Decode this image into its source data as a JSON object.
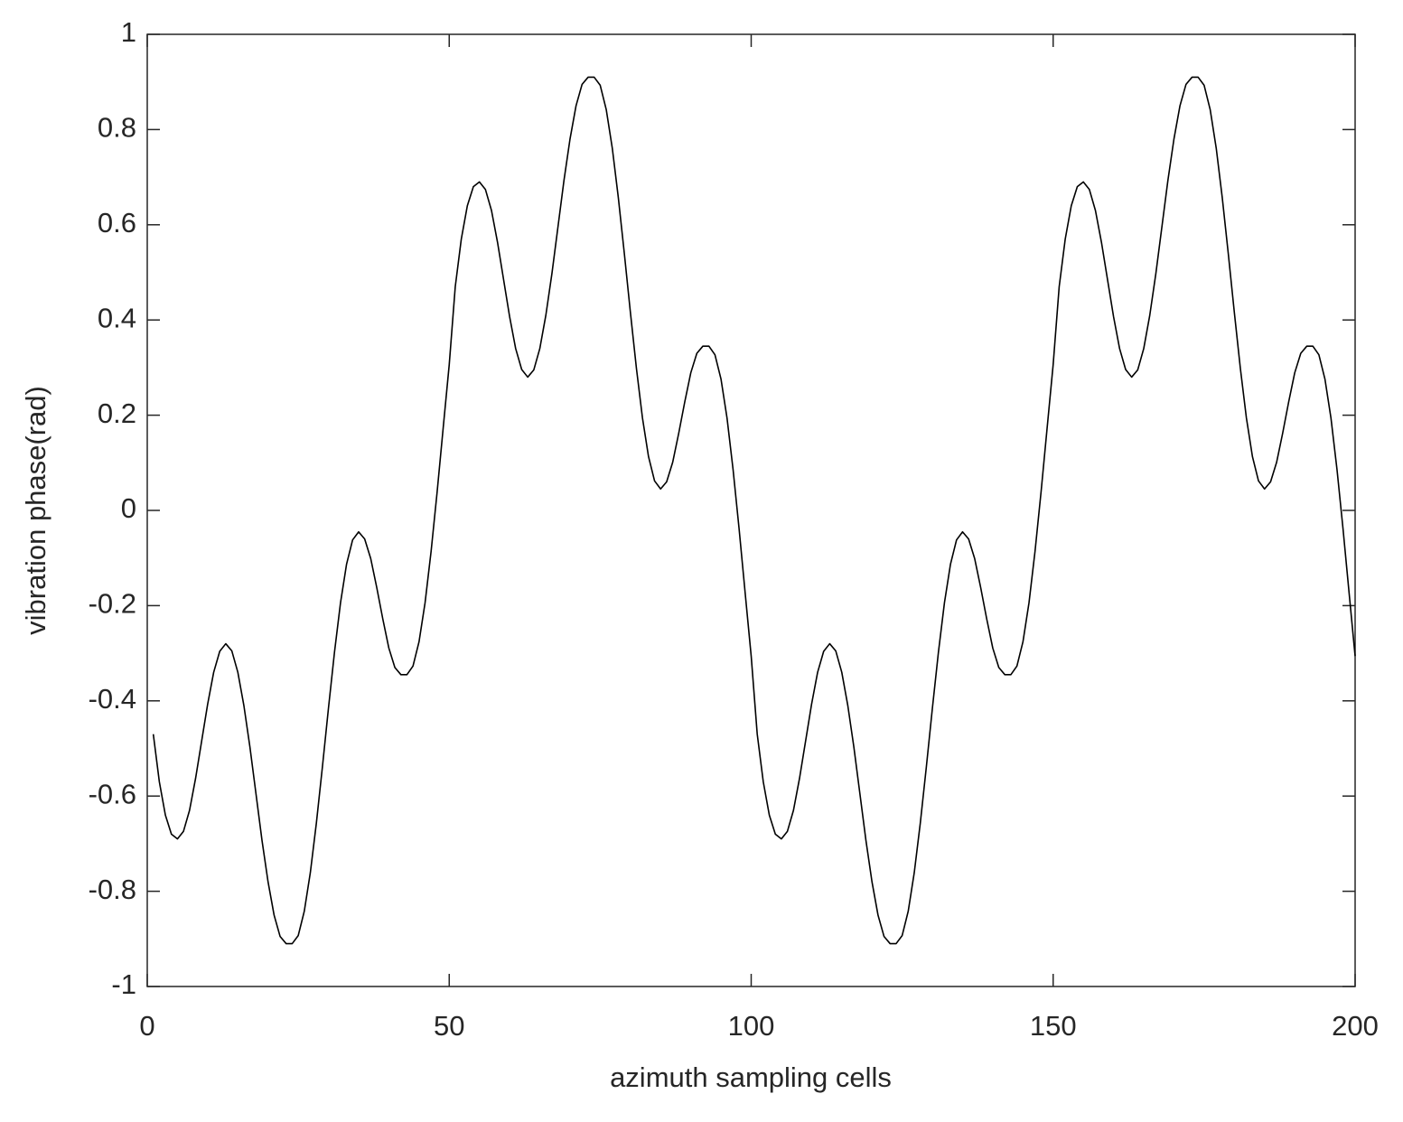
{
  "chart_data": {
    "type": "line",
    "xlabel": "azimuth sampling cells",
    "ylabel": "vibration phase(rad)",
    "color": "#000000",
    "x": [
      1,
      2,
      3,
      4,
      5,
      6,
      7,
      8,
      9,
      10,
      11,
      12,
      13,
      14,
      15,
      16,
      17,
      18,
      19,
      20,
      21,
      22,
      23,
      24,
      25,
      26,
      27,
      28,
      29,
      30,
      31,
      32,
      33,
      34,
      35,
      36,
      37,
      38,
      39,
      40,
      41,
      42,
      43,
      44,
      45,
      46,
      47,
      48,
      49,
      50,
      51,
      52,
      53,
      54,
      55,
      56,
      57,
      58,
      59,
      60,
      61,
      62,
      63,
      64,
      65,
      66,
      67,
      68,
      69,
      70,
      71,
      72,
      73,
      74,
      75,
      76,
      77,
      78,
      79,
      80,
      81,
      82,
      83,
      84,
      85,
      86,
      87,
      88,
      89,
      90,
      91,
      92,
      93,
      94,
      95,
      96,
      97,
      98,
      99,
      100,
      101,
      102,
      103,
      104,
      105,
      106,
      107,
      108,
      109,
      110,
      111,
      112,
      113,
      114,
      115,
      116,
      117,
      118,
      119,
      120,
      121,
      122,
      123,
      124,
      125,
      126,
      127,
      128,
      129,
      130,
      131,
      132,
      133,
      134,
      135,
      136,
      137,
      138,
      139,
      140,
      141,
      142,
      143,
      144,
      145,
      146,
      147,
      148,
      149,
      150,
      151,
      152,
      153,
      154,
      155,
      156,
      157,
      158,
      159,
      160,
      161,
      162,
      163,
      164,
      165,
      166,
      167,
      168,
      169,
      170,
      171,
      172,
      173,
      174,
      175,
      176,
      177,
      178,
      179,
      180,
      181,
      182,
      183,
      184,
      185,
      186,
      187,
      188,
      189,
      190,
      191,
      192,
      193,
      194,
      195,
      196,
      197,
      198,
      199,
      200
    ],
    "values": [
      -0.47,
      -0.57,
      -0.64,
      -0.68,
      -0.69,
      -0.674,
      -0.63,
      -0.563,
      -0.485,
      -0.407,
      -0.34,
      -0.296,
      -0.28,
      -0.295,
      -0.34,
      -0.41,
      -0.497,
      -0.595,
      -0.693,
      -0.78,
      -0.85,
      -0.895,
      -0.91,
      -0.91,
      -0.893,
      -0.842,
      -0.761,
      -0.657,
      -0.539,
      -0.416,
      -0.298,
      -0.194,
      -0.113,
      -0.062,
      -0.045,
      -0.06,
      -0.101,
      -0.162,
      -0.228,
      -0.289,
      -0.33,
      -0.345,
      -0.345,
      -0.327,
      -0.276,
      -0.194,
      -0.086,
      0.039,
      0.173,
      0.306,
      0.47,
      0.57,
      0.64,
      0.68,
      0.69,
      0.674,
      0.63,
      0.563,
      0.485,
      0.407,
      0.34,
      0.296,
      0.28,
      0.295,
      0.34,
      0.41,
      0.497,
      0.595,
      0.693,
      0.78,
      0.85,
      0.895,
      0.91,
      0.91,
      0.893,
      0.842,
      0.761,
      0.657,
      0.539,
      0.416,
      0.298,
      0.194,
      0.113,
      0.062,
      0.045,
      0.06,
      0.101,
      0.162,
      0.228,
      0.289,
      0.33,
      0.345,
      0.345,
      0.327,
      0.276,
      0.194,
      0.086,
      -0.039,
      -0.173,
      -0.306,
      -0.47,
      -0.57,
      -0.64,
      -0.68,
      -0.69,
      -0.674,
      -0.63,
      -0.563,
      -0.485,
      -0.407,
      -0.34,
      -0.296,
      -0.28,
      -0.295,
      -0.34,
      -0.41,
      -0.497,
      -0.595,
      -0.693,
      -0.78,
      -0.85,
      -0.895,
      -0.91,
      -0.91,
      -0.893,
      -0.842,
      -0.761,
      -0.657,
      -0.539,
      -0.416,
      -0.298,
      -0.194,
      -0.113,
      -0.062,
      -0.045,
      -0.06,
      -0.101,
      -0.162,
      -0.228,
      -0.289,
      -0.33,
      -0.345,
      -0.345,
      -0.327,
      -0.276,
      -0.194,
      -0.086,
      0.039,
      0.173,
      0.306,
      0.47,
      0.57,
      0.64,
      0.68,
      0.69,
      0.674,
      0.63,
      0.563,
      0.485,
      0.407,
      0.34,
      0.296,
      0.28,
      0.295,
      0.34,
      0.41,
      0.497,
      0.595,
      0.693,
      0.78,
      0.85,
      0.895,
      0.91,
      0.91,
      0.893,
      0.842,
      0.761,
      0.657,
      0.539,
      0.416,
      0.298,
      0.194,
      0.113,
      0.062,
      0.045,
      0.06,
      0.101,
      0.162,
      0.228,
      0.289,
      0.33,
      0.345,
      0.345,
      0.327,
      0.276,
      0.194,
      0.086,
      -0.039,
      -0.173,
      -0.306
    ],
    "xlim": [
      0,
      200
    ],
    "xticks": [
      0,
      50,
      100,
      150,
      200
    ],
    "ylim": [
      -1,
      1
    ],
    "yticks": [
      -1,
      -0.8,
      -0.6,
      -0.4,
      -0.2,
      0,
      0.2,
      0.4,
      0.6,
      0.8,
      1
    ],
    "grid": false
  }
}
